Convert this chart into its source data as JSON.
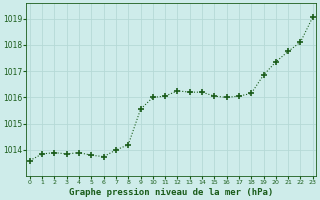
{
  "hours": [
    0,
    1,
    2,
    3,
    4,
    5,
    6,
    7,
    8,
    9,
    10,
    11,
    12,
    13,
    14,
    15,
    16,
    17,
    18,
    19,
    20,
    21,
    22,
    23
  ],
  "pressure": [
    1013.6,
    1013.85,
    1013.9,
    1013.85,
    1013.9,
    1013.8,
    1013.75,
    1014.0,
    1014.2,
    1015.55,
    1016.0,
    1016.05,
    1016.25,
    1016.2,
    1016.2,
    1016.05,
    1016.0,
    1016.05,
    1016.15,
    1016.85,
    1017.35,
    1017.75,
    1018.1,
    1019.05
  ],
  "line_color": "#1a5c1a",
  "marker_color": "#1a5c1a",
  "bg_color": "#ceecea",
  "grid_major_color": "#b5d9d6",
  "grid_minor_color": "#c8eae7",
  "xlabel": "Graphe pression niveau de la mer (hPa)",
  "xlabel_color": "#1a5c1a",
  "tick_color": "#1a5c1a",
  "ymin": 1013.0,
  "ymax": 1019.6,
  "yticks": [
    1014,
    1015,
    1016,
    1017,
    1018,
    1019
  ],
  "xticks": [
    0,
    1,
    2,
    3,
    4,
    5,
    6,
    7,
    8,
    9,
    10,
    11,
    12,
    13,
    14,
    15,
    16,
    17,
    18,
    19,
    20,
    21,
    22,
    23
  ]
}
